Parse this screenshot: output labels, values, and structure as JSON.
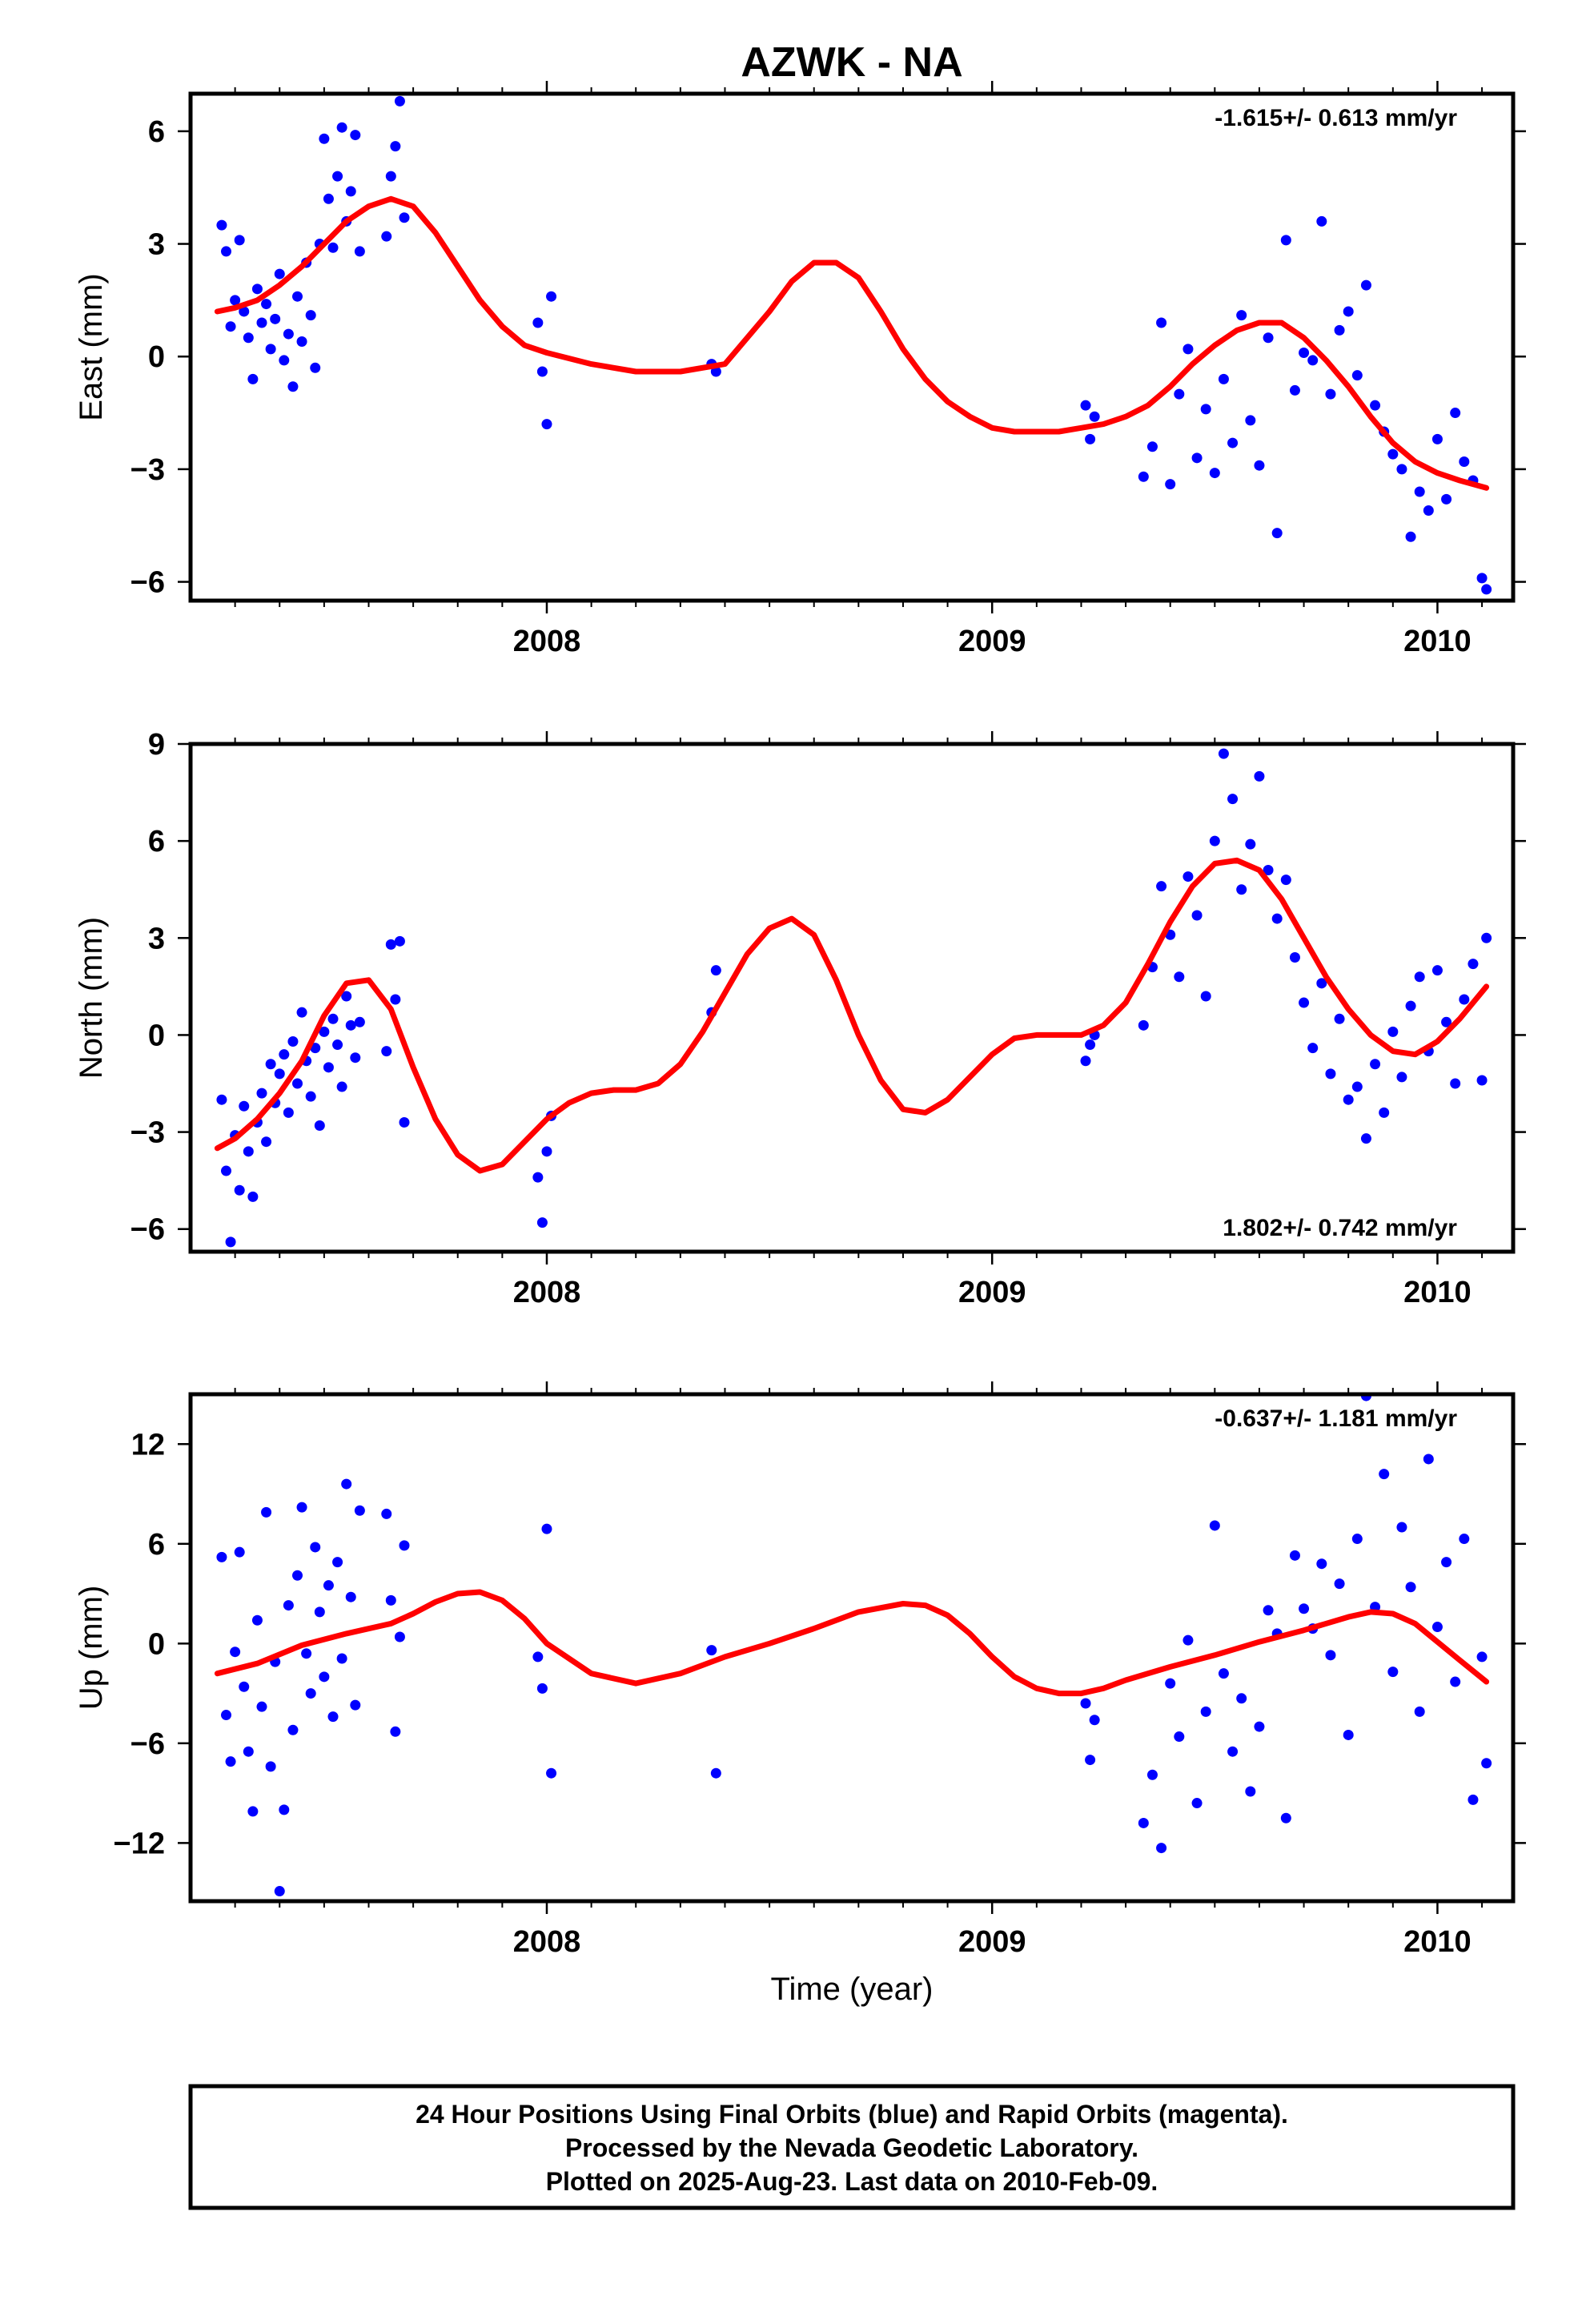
{
  "title": "AZWK - NA",
  "xlabel": "Time (year)",
  "colors": {
    "points": "#0000ff",
    "fit": "#ff0000",
    "frame": "#000000"
  },
  "footer": {
    "line1": "24 Hour Positions Using Final Orbits (blue) and Rapid Orbits (magenta).",
    "line2": "Processed by the Nevada Geodetic Laboratory.",
    "line3": "Plotted on 2025-Aug-23. Last data on 2010-Feb-09."
  },
  "chart_data": [
    {
      "type": "scatter",
      "name": "east",
      "ylabel": "East (mm)",
      "rate": "-1.615+/- 0.613 mm/yr",
      "rate_position": "top-right",
      "xlim": [
        2007.2,
        2010.17
      ],
      "ylim": [
        -6.5,
        7.0
      ],
      "yticks": [
        6,
        3,
        0,
        -3,
        -6
      ],
      "xticks": [
        2008,
        2009,
        2010
      ],
      "series": [
        {
          "kind": "points",
          "x": [
            2007.27,
            2007.28,
            2007.29,
            2007.3,
            2007.31,
            2007.32,
            2007.33,
            2007.34,
            2007.35,
            2007.36,
            2007.37,
            2007.38,
            2007.39,
            2007.4,
            2007.41,
            2007.42,
            2007.43,
            2007.44,
            2007.45,
            2007.46,
            2007.47,
            2007.48,
            2007.49,
            2007.5,
            2007.51,
            2007.52,
            2007.53,
            2007.54,
            2007.55,
            2007.56,
            2007.57,
            2007.58,
            2007.64,
            2007.65,
            2007.66,
            2007.67,
            2007.68,
            2007.98,
            2007.99,
            2008.0,
            2008.01,
            2008.37,
            2008.38,
            2009.21,
            2009.22,
            2009.23,
            2009.34,
            2009.36,
            2009.38,
            2009.4,
            2009.42,
            2009.44,
            2009.46,
            2009.48,
            2009.5,
            2009.52,
            2009.54,
            2009.56,
            2009.58,
            2009.6,
            2009.62,
            2009.64,
            2009.66,
            2009.68,
            2009.7,
            2009.72,
            2009.74,
            2009.76,
            2009.78,
            2009.8,
            2009.82,
            2009.84,
            2009.86,
            2009.88,
            2009.9,
            2009.92,
            2009.94,
            2009.96,
            2009.98,
            2010.0,
            2010.02,
            2010.04,
            2010.06,
            2010.08,
            2010.1,
            2010.11
          ],
          "y": [
            3.5,
            2.8,
            0.8,
            1.5,
            3.1,
            1.2,
            0.5,
            -0.6,
            1.8,
            0.9,
            1.4,
            0.2,
            1.0,
            2.2,
            -0.1,
            0.6,
            -0.8,
            1.6,
            0.4,
            2.5,
            1.1,
            -0.3,
            3.0,
            5.8,
            4.2,
            2.9,
            4.8,
            6.1,
            3.6,
            4.4,
            5.9,
            2.8,
            3.2,
            4.8,
            5.6,
            6.8,
            3.7,
            0.9,
            -0.4,
            -1.8,
            1.6,
            -0.2,
            -0.4,
            -1.3,
            -2.2,
            -1.6,
            -3.2,
            -2.4,
            0.9,
            -3.4,
            -1.0,
            0.2,
            -2.7,
            -1.4,
            -3.1,
            -0.6,
            -2.3,
            1.1,
            -1.7,
            -2.9,
            0.5,
            -4.7,
            3.1,
            -0.9,
            0.1,
            -0.1,
            3.6,
            -1.0,
            0.7,
            1.2,
            -0.5,
            1.9,
            -1.3,
            -2.0,
            -2.6,
            -3.0,
            -4.8,
            -3.6,
            -4.1,
            -2.2,
            -3.8,
            -1.5,
            -2.8,
            -3.3,
            -5.9,
            -6.2
          ]
        },
        {
          "kind": "fit",
          "x": [
            2007.26,
            2007.3,
            2007.35,
            2007.4,
            2007.45,
            2007.5,
            2007.55,
            2007.6,
            2007.65,
            2007.7,
            2007.75,
            2007.8,
            2007.85,
            2007.9,
            2007.95,
            2008.0,
            2008.1,
            2008.2,
            2008.3,
            2008.4,
            2008.5,
            2008.55,
            2008.6,
            2008.65,
            2008.7,
            2008.75,
            2008.8,
            2008.85,
            2008.9,
            2008.95,
            2009.0,
            2009.05,
            2009.1,
            2009.15,
            2009.2,
            2009.25,
            2009.3,
            2009.35,
            2009.4,
            2009.45,
            2009.5,
            2009.55,
            2009.6,
            2009.65,
            2009.7,
            2009.75,
            2009.8,
            2009.85,
            2009.9,
            2009.95,
            2010.0,
            2010.05,
            2010.11
          ],
          "y": [
            1.2,
            1.3,
            1.5,
            1.9,
            2.4,
            3.0,
            3.6,
            4.0,
            4.2,
            4.0,
            3.3,
            2.4,
            1.5,
            0.8,
            0.3,
            0.1,
            -0.2,
            -0.4,
            -0.4,
            -0.2,
            1.2,
            2.0,
            2.5,
            2.5,
            2.1,
            1.2,
            0.2,
            -0.6,
            -1.2,
            -1.6,
            -1.9,
            -2.0,
            -2.0,
            -2.0,
            -1.9,
            -1.8,
            -1.6,
            -1.3,
            -0.8,
            -0.2,
            0.3,
            0.7,
            0.9,
            0.9,
            0.5,
            -0.1,
            -0.8,
            -1.6,
            -2.3,
            -2.8,
            -3.1,
            -3.3,
            -3.5
          ]
        }
      ]
    },
    {
      "type": "scatter",
      "name": "north",
      "ylabel": "North (mm)",
      "rate": "1.802+/- 0.742 mm/yr",
      "rate_position": "bottom-right",
      "xlim": [
        2007.2,
        2010.17
      ],
      "ylim": [
        -6.7,
        9.0
      ],
      "yticks": [
        9,
        6,
        3,
        0,
        -3,
        -6
      ],
      "xticks": [
        2008,
        2009,
        2010
      ],
      "series": [
        {
          "kind": "points",
          "x": [
            2007.27,
            2007.28,
            2007.29,
            2007.3,
            2007.31,
            2007.32,
            2007.33,
            2007.34,
            2007.35,
            2007.36,
            2007.37,
            2007.38,
            2007.39,
            2007.4,
            2007.41,
            2007.42,
            2007.43,
            2007.44,
            2007.45,
            2007.46,
            2007.47,
            2007.48,
            2007.49,
            2007.5,
            2007.51,
            2007.52,
            2007.53,
            2007.54,
            2007.55,
            2007.56,
            2007.57,
            2007.58,
            2007.64,
            2007.65,
            2007.66,
            2007.67,
            2007.68,
            2007.98,
            2007.99,
            2008.0,
            2008.01,
            2008.37,
            2008.38,
            2009.21,
            2009.22,
            2009.23,
            2009.34,
            2009.36,
            2009.38,
            2009.4,
            2009.42,
            2009.44,
            2009.46,
            2009.48,
            2009.5,
            2009.52,
            2009.54,
            2009.56,
            2009.58,
            2009.6,
            2009.62,
            2009.64,
            2009.66,
            2009.68,
            2009.7,
            2009.72,
            2009.74,
            2009.76,
            2009.78,
            2009.8,
            2009.82,
            2009.84,
            2009.86,
            2009.88,
            2009.9,
            2009.92,
            2009.94,
            2009.96,
            2009.98,
            2010.0,
            2010.02,
            2010.04,
            2010.06,
            2010.08,
            2010.1,
            2010.11
          ],
          "y": [
            -2.0,
            -4.2,
            -6.4,
            -3.1,
            -4.8,
            -2.2,
            -3.6,
            -5.0,
            -2.7,
            -1.8,
            -3.3,
            -0.9,
            -2.1,
            -1.2,
            -0.6,
            -2.4,
            -0.2,
            -1.5,
            0.7,
            -0.8,
            -1.9,
            -0.4,
            -2.8,
            0.1,
            -1.0,
            0.5,
            -0.3,
            -1.6,
            1.2,
            0.3,
            -0.7,
            0.4,
            -0.5,
            2.8,
            1.1,
            2.9,
            -2.7,
            -4.4,
            -5.8,
            -3.6,
            -2.5,
            0.7,
            2.0,
            -0.8,
            -0.3,
            0.0,
            0.3,
            2.1,
            4.6,
            3.1,
            1.8,
            4.9,
            3.7,
            1.2,
            6.0,
            8.7,
            7.3,
            4.5,
            5.9,
            8.0,
            5.1,
            3.6,
            4.8,
            2.4,
            1.0,
            -0.4,
            1.6,
            -1.2,
            0.5,
            -2.0,
            -1.6,
            -3.2,
            -0.9,
            -2.4,
            0.1,
            -1.3,
            0.9,
            1.8,
            -0.5,
            2.0,
            0.4,
            -1.5,
            1.1,
            2.2,
            -1.4,
            3.0
          ]
        },
        {
          "kind": "fit",
          "x": [
            2007.26,
            2007.3,
            2007.35,
            2007.4,
            2007.45,
            2007.5,
            2007.55,
            2007.6,
            2007.65,
            2007.7,
            2007.75,
            2007.8,
            2007.85,
            2007.9,
            2007.95,
            2008.0,
            2008.05,
            2008.1,
            2008.15,
            2008.2,
            2008.25,
            2008.3,
            2008.35,
            2008.4,
            2008.45,
            2008.5,
            2008.55,
            2008.6,
            2008.65,
            2008.7,
            2008.75,
            2008.8,
            2008.85,
            2008.9,
            2008.95,
            2009.0,
            2009.05,
            2009.1,
            2009.15,
            2009.2,
            2009.25,
            2009.3,
            2009.35,
            2009.4,
            2009.45,
            2009.5,
            2009.55,
            2009.6,
            2009.65,
            2009.7,
            2009.75,
            2009.8,
            2009.85,
            2009.9,
            2009.95,
            2010.0,
            2010.05,
            2010.11
          ],
          "y": [
            -3.5,
            -3.2,
            -2.6,
            -1.8,
            -0.8,
            0.6,
            1.6,
            1.7,
            0.8,
            -1.0,
            -2.6,
            -3.7,
            -4.2,
            -4.0,
            -3.3,
            -2.6,
            -2.1,
            -1.8,
            -1.7,
            -1.7,
            -1.5,
            -0.9,
            0.1,
            1.3,
            2.5,
            3.3,
            3.6,
            3.1,
            1.7,
            0.0,
            -1.4,
            -2.3,
            -2.4,
            -2.0,
            -1.3,
            -0.6,
            -0.1,
            0.0,
            0.0,
            0.0,
            0.3,
            1.0,
            2.2,
            3.5,
            4.6,
            5.3,
            5.4,
            5.1,
            4.2,
            3.0,
            1.8,
            0.8,
            0.0,
            -0.5,
            -0.6,
            -0.2,
            0.5,
            1.5
          ]
        }
      ]
    },
    {
      "type": "scatter",
      "name": "up",
      "ylabel": "Up (mm)",
      "rate": "-0.637+/- 1.181 mm/yr",
      "rate_position": "top-right",
      "xlim": [
        2007.2,
        2010.17
      ],
      "ylim": [
        -15.5,
        15.0
      ],
      "yticks": [
        12,
        6,
        0,
        -6,
        -12
      ],
      "xticks": [
        2008,
        2009,
        2010
      ],
      "series": [
        {
          "kind": "points",
          "x": [
            2007.27,
            2007.28,
            2007.29,
            2007.3,
            2007.31,
            2007.32,
            2007.33,
            2007.34,
            2007.35,
            2007.36,
            2007.37,
            2007.38,
            2007.39,
            2007.4,
            2007.41,
            2007.42,
            2007.43,
            2007.44,
            2007.45,
            2007.46,
            2007.47,
            2007.48,
            2007.49,
            2007.5,
            2007.51,
            2007.52,
            2007.53,
            2007.54,
            2007.55,
            2007.56,
            2007.57,
            2007.58,
            2007.64,
            2007.65,
            2007.66,
            2007.67,
            2007.68,
            2007.98,
            2007.99,
            2008.0,
            2008.01,
            2008.37,
            2008.38,
            2009.21,
            2009.22,
            2009.23,
            2009.34,
            2009.36,
            2009.38,
            2009.4,
            2009.42,
            2009.44,
            2009.46,
            2009.48,
            2009.5,
            2009.52,
            2009.54,
            2009.56,
            2009.58,
            2009.6,
            2009.62,
            2009.64,
            2009.66,
            2009.68,
            2009.7,
            2009.72,
            2009.74,
            2009.76,
            2009.78,
            2009.8,
            2009.82,
            2009.84,
            2009.86,
            2009.88,
            2009.9,
            2009.92,
            2009.94,
            2009.96,
            2009.98,
            2010.0,
            2010.02,
            2010.04,
            2010.06,
            2010.08,
            2010.1,
            2010.11
          ],
          "y": [
            5.2,
            -4.3,
            -7.1,
            -0.5,
            5.5,
            -2.6,
            -6.5,
            -10.1,
            1.4,
            -3.8,
            7.9,
            -7.4,
            -1.1,
            -14.9,
            -10.0,
            2.3,
            -5.2,
            4.1,
            8.2,
            -0.6,
            -3.0,
            5.8,
            1.9,
            -2.0,
            3.5,
            -4.4,
            4.9,
            -0.9,
            9.6,
            2.8,
            -3.7,
            8.0,
            7.8,
            2.6,
            -5.3,
            0.4,
            5.9,
            -0.8,
            -2.7,
            6.9,
            -7.8,
            -0.4,
            -7.8,
            -3.6,
            -7.0,
            -4.6,
            -10.8,
            -7.9,
            -12.3,
            -2.4,
            -5.6,
            0.2,
            -9.6,
            -4.1,
            7.1,
            -1.8,
            -6.5,
            -3.3,
            -8.9,
            -5.0,
            2.0,
            0.6,
            -10.5,
            5.3,
            2.1,
            0.9,
            4.8,
            -0.7,
            3.6,
            -5.5,
            6.3,
            14.9,
            2.2,
            10.2,
            -1.7,
            7.0,
            3.4,
            -4.1,
            11.1,
            1.0,
            4.9,
            -2.3,
            6.3,
            -9.4,
            -0.8,
            -7.2
          ]
        },
        {
          "kind": "fit",
          "x": [
            2007.26,
            2007.35,
            2007.45,
            2007.55,
            2007.65,
            2007.7,
            2007.75,
            2007.8,
            2007.85,
            2007.9,
            2007.95,
            2008.0,
            2008.1,
            2008.2,
            2008.3,
            2008.4,
            2008.5,
            2008.6,
            2008.7,
            2008.8,
            2008.85,
            2008.9,
            2008.95,
            2009.0,
            2009.05,
            2009.1,
            2009.15,
            2009.2,
            2009.25,
            2009.3,
            2009.4,
            2009.5,
            2009.6,
            2009.7,
            2009.8,
            2009.85,
            2009.9,
            2009.95,
            2010.0,
            2010.05,
            2010.11
          ],
          "y": [
            -1.8,
            -1.2,
            -0.1,
            0.6,
            1.2,
            1.8,
            2.5,
            3.0,
            3.1,
            2.6,
            1.5,
            0.0,
            -1.8,
            -2.4,
            -1.8,
            -0.8,
            0.0,
            0.9,
            1.9,
            2.4,
            2.3,
            1.7,
            0.6,
            -0.8,
            -2.0,
            -2.7,
            -3.0,
            -3.0,
            -2.7,
            -2.2,
            -1.4,
            -0.7,
            0.1,
            0.8,
            1.6,
            1.9,
            1.8,
            1.2,
            0.1,
            -1.0,
            -2.3
          ]
        }
      ]
    }
  ]
}
